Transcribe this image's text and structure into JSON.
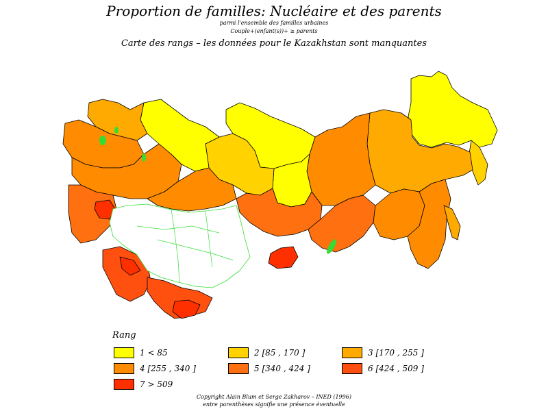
{
  "header": {
    "title": "Proportion de familles: Nucléaire et des parents",
    "subtitle_1": "parmi l'ensemble des familles urbaines",
    "subtitle_2": "Couple+(enfant(s))+ ≥ parents",
    "note": "Carte des  rangs  –  les données pour le Kazakhstan sont manquantes"
  },
  "map": {
    "missing_fill": "#ffffff",
    "missing_border": "#33dd33",
    "region_border": "#000000"
  },
  "legend": {
    "title": "Rang",
    "items": [
      {
        "label": "1  <  85",
        "color": "#ffff00"
      },
      {
        "label": "2  [85  ,  170  ]",
        "color": "#ffd200"
      },
      {
        "label": "3  [170  ,  255  ]",
        "color": "#ffaa00"
      },
      {
        "label": "4  [255  ,  340  ]",
        "color": "#ff8c00"
      },
      {
        "label": "5  [340  ,  424  ]",
        "color": "#ff7010"
      },
      {
        "label": "6  [424  ,  509  ]",
        "color": "#ff5010"
      },
      {
        "label": "7  >  509",
        "color": "#ff3000"
      }
    ]
  },
  "footer": {
    "copyright": "Copyright  Alain  Blum et  Serge  Zakharov  –  INED  (1996)",
    "footnote": "entre parenthèses signifie une présence éventuelle"
  }
}
